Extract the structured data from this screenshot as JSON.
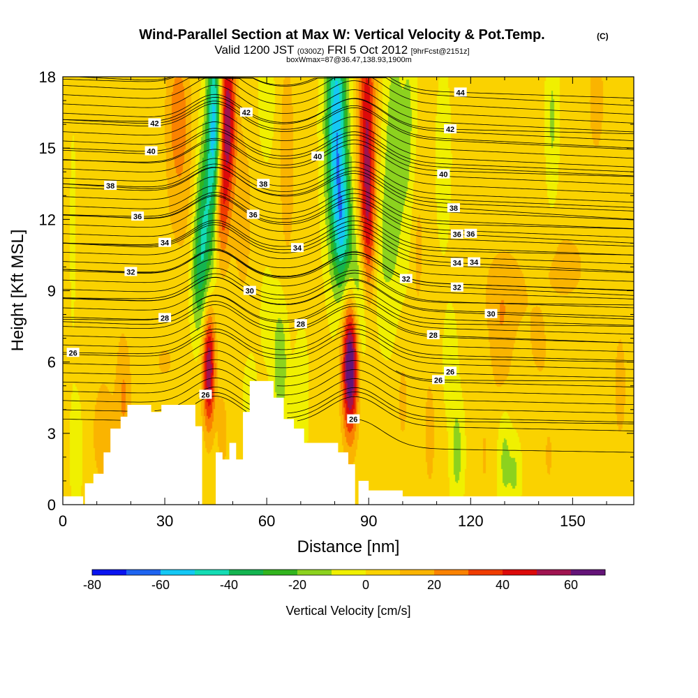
{
  "chart_data": {
    "type": "heatmap",
    "title": "Wind-Parallel Section at Max W: Vertical Velocity & Pot.Temp.",
    "title_mark": "(C)",
    "subtitle": {
      "part1": "Valid 1200 JST",
      "part2": "(0300Z)",
      "part3": "FRI 5 Oct 2012",
      "part4": "[9hrFcst@2151z]"
    },
    "subtitle2": "boxWmax=87@36.47,138.93,1900m",
    "xlabel": "Distance [nm]",
    "ylabel": "Height [Kft MSL]",
    "xlim": [
      0,
      168
    ],
    "ylim": [
      0,
      18
    ],
    "x_ticks": [
      "0",
      "30",
      "60",
      "90",
      "120",
      "150"
    ],
    "x_tick_values": [
      0,
      30,
      60,
      90,
      120,
      150
    ],
    "y_ticks": [
      "0",
      "3",
      "6",
      "9",
      "12",
      "15",
      "18"
    ],
    "y_tick_values": [
      0,
      3,
      6,
      9,
      12,
      15,
      18
    ],
    "colorbar": {
      "label": "Vertical Velocity [cm/s]",
      "levels": [
        -80,
        -70,
        -60,
        -50,
        -40,
        -30,
        -20,
        -10,
        0,
        10,
        20,
        30,
        40,
        50,
        60,
        70
      ],
      "tick_labels": [
        "-80",
        "-60",
        "-40",
        "-20",
        "0",
        "20",
        "40",
        "60"
      ],
      "tick_values": [
        -80,
        -60,
        -40,
        -20,
        0,
        20,
        40,
        60
      ],
      "colors": [
        "#0a14f0",
        "#1e64f0",
        "#14c8f5",
        "#14dcb4",
        "#14b450",
        "#32b41e",
        "#8cd21e",
        "#f0f000",
        "#fad200",
        "#fab400",
        "#fa8200",
        "#f03c00",
        "#dc0a0a",
        "#a01450",
        "#641478"
      ]
    },
    "velocity_features": [
      {
        "x": 43,
        "y": 5.8,
        "sx": 1.3,
        "sy": 1.8,
        "w": 58
      },
      {
        "x": 84.5,
        "y": 5.8,
        "sx": 1.6,
        "sy": 2.0,
        "w": 72
      },
      {
        "x": 34,
        "y": 16.5,
        "sx": 2.5,
        "sy": 2.0,
        "w": 24
      },
      {
        "x": 35,
        "y": 12.5,
        "sx": 3.5,
        "sy": 2.0,
        "w": 10
      },
      {
        "x": 48.5,
        "y": 16.3,
        "sx": 1.6,
        "sy": 2.4,
        "w": 55
      },
      {
        "x": 46.5,
        "y": 12.5,
        "sx": 1.5,
        "sy": 1.8,
        "w": 34
      },
      {
        "x": 44.5,
        "y": 15.8,
        "sx": 1.5,
        "sy": 3.0,
        "w": -58
      },
      {
        "x": 41.5,
        "y": 11.5,
        "sx": 1.8,
        "sy": 2.5,
        "w": -40
      },
      {
        "x": 39.5,
        "y": 9.5,
        "sx": 1.5,
        "sy": 1.8,
        "w": -18
      },
      {
        "x": 53,
        "y": 12.2,
        "sx": 2.3,
        "sy": 3.0,
        "w": 12
      },
      {
        "x": 60,
        "y": 17,
        "sx": 1.6,
        "sy": 1.5,
        "w": -12
      },
      {
        "x": 66,
        "y": 14.5,
        "sx": 2.0,
        "sy": 4.0,
        "w": 12
      },
      {
        "x": 80.5,
        "y": 16.0,
        "sx": 2.2,
        "sy": 3.5,
        "w": -60
      },
      {
        "x": 82.5,
        "y": 11.5,
        "sx": 2.0,
        "sy": 2.0,
        "w": -40
      },
      {
        "x": 86.5,
        "y": 9.5,
        "sx": 1.5,
        "sy": 1.5,
        "w": -20
      },
      {
        "x": 89.5,
        "y": 15.5,
        "sx": 1.8,
        "sy": 3.5,
        "w": 48
      },
      {
        "x": 90,
        "y": 11.5,
        "sx": 1.6,
        "sy": 1.8,
        "w": 22
      },
      {
        "x": 97.5,
        "y": 14.5,
        "sx": 2.0,
        "sy": 4.0,
        "w": -20
      },
      {
        "x": 102,
        "y": 15,
        "sx": 1.6,
        "sy": 4.0,
        "w": -15
      },
      {
        "x": 94,
        "y": 11,
        "sx": 2.0,
        "sy": 2.5,
        "w": -12
      },
      {
        "x": 104,
        "y": 11,
        "sx": 1.8,
        "sy": 3.0,
        "w": 12
      },
      {
        "x": 112,
        "y": 14.5,
        "sx": 1.5,
        "sy": 2.5,
        "w": -9
      },
      {
        "x": 130,
        "y": 9,
        "sx": 5.0,
        "sy": 1.5,
        "w": 12
      },
      {
        "x": 148,
        "y": 10,
        "sx": 6.0,
        "sy": 1.5,
        "w": 10
      },
      {
        "x": 129,
        "y": 6.5,
        "sx": 2.5,
        "sy": 1.8,
        "w": 12
      },
      {
        "x": 140,
        "y": 6.5,
        "sx": 3.0,
        "sy": 1.5,
        "w": 8
      },
      {
        "x": 157,
        "y": 17.0,
        "sx": 2.0,
        "sy": 2.0,
        "w": 12
      },
      {
        "x": 144,
        "y": 16.2,
        "sx": 1.2,
        "sy": 2.5,
        "w": -14
      },
      {
        "x": 130,
        "y": 1.9,
        "sx": 1.3,
        "sy": 1.5,
        "w": -16
      },
      {
        "x": 133,
        "y": 1.3,
        "sx": 1.2,
        "sy": 1.0,
        "w": -14
      },
      {
        "x": 116,
        "y": 2.2,
        "sx": 1.3,
        "sy": 1.5,
        "w": -18
      },
      {
        "x": 114,
        "y": 6.0,
        "sx": 1.3,
        "sy": 1.4,
        "w": -12
      },
      {
        "x": 4,
        "y": 2.3,
        "sx": 1.2,
        "sy": 1.5,
        "w": -12
      },
      {
        "x": 3,
        "y": 11,
        "sx": 0.6,
        "sy": 3.0,
        "w": -8
      },
      {
        "x": 30,
        "y": 6,
        "sx": 4.5,
        "sy": 1.3,
        "w": 8
      },
      {
        "x": 13,
        "y": 8,
        "sx": 6.0,
        "sy": 1.3,
        "w": 6
      },
      {
        "x": 12,
        "y": 3.0,
        "sx": 3.0,
        "sy": 2.0,
        "w": 12
      },
      {
        "x": 18,
        "y": 4.5,
        "sx": 1.5,
        "sy": 1.5,
        "w": 18
      },
      {
        "x": 64,
        "y": 6,
        "sx": 1.6,
        "sy": 2.0,
        "w": -22
      },
      {
        "x": 60,
        "y": 8,
        "sx": 1.2,
        "sy": 1.2,
        "w": -10
      },
      {
        "x": 70,
        "y": 4.5,
        "sx": 1.5,
        "sy": 2.0,
        "w": -10
      },
      {
        "x": 100,
        "y": 4.5,
        "sx": 1.5,
        "sy": 2.0,
        "w": 10
      },
      {
        "x": 108,
        "y": 3,
        "sx": 1.3,
        "sy": 2.0,
        "w": 12
      },
      {
        "x": 124,
        "y": 2,
        "sx": 1.5,
        "sy": 2.0,
        "w": 8
      },
      {
        "x": 143,
        "y": 2,
        "sx": 2.0,
        "sy": 2.0,
        "w": 8
      },
      {
        "x": 164,
        "y": 5,
        "sx": 1.5,
        "sy": 2.0,
        "w": 12
      },
      {
        "x": 47,
        "y": 3.0,
        "sx": 1.0,
        "sy": 1.2,
        "w": 15
      },
      {
        "x": 55,
        "y": 4.5,
        "sx": 1.5,
        "sy": 1.5,
        "w": -8
      },
      {
        "x": 88,
        "y": 7.5,
        "sx": 1.0,
        "sy": 1.5,
        "w": -10
      }
    ],
    "terrain": [
      [
        0,
        0.35
      ],
      [
        6,
        0.35
      ],
      [
        6,
        0
      ],
      [
        6.5,
        0
      ],
      [
        6.5,
        0.9
      ],
      [
        9,
        0.9
      ],
      [
        9,
        1.3
      ],
      [
        12,
        1.3
      ],
      [
        12,
        2.2
      ],
      [
        14,
        2.2
      ],
      [
        14,
        3.2
      ],
      [
        17,
        3.2
      ],
      [
        17,
        3.7
      ],
      [
        19,
        3.7
      ],
      [
        19,
        4.2
      ],
      [
        26,
        4.2
      ],
      [
        26,
        3.9
      ],
      [
        29,
        3.9
      ],
      [
        29,
        4.2
      ],
      [
        39,
        4.2
      ],
      [
        39,
        3.3
      ],
      [
        41,
        3.3
      ],
      [
        41,
        0
      ],
      [
        45,
        0
      ],
      [
        45,
        2.2
      ],
      [
        47,
        2.2
      ],
      [
        47,
        1.9
      ],
      [
        49,
        1.9
      ],
      [
        49,
        2.6
      ],
      [
        51,
        2.6
      ],
      [
        51,
        1.9
      ],
      [
        53,
        1.9
      ],
      [
        53,
        3.9
      ],
      [
        55,
        3.9
      ],
      [
        55,
        5.2
      ],
      [
        62,
        5.2
      ],
      [
        62,
        4.5
      ],
      [
        65,
        4.5
      ],
      [
        65,
        3.6
      ],
      [
        68,
        3.6
      ],
      [
        68,
        3.2
      ],
      [
        71,
        3.2
      ],
      [
        71,
        2.6
      ],
      [
        81,
        2.6
      ],
      [
        81,
        2.2
      ],
      [
        84,
        2.2
      ],
      [
        84,
        1.7
      ],
      [
        86,
        1.7
      ],
      [
        86,
        0
      ],
      [
        87,
        0
      ],
      [
        87,
        1.0
      ],
      [
        90,
        1.0
      ],
      [
        90,
        0.6
      ],
      [
        100,
        0.6
      ],
      [
        100,
        0.35
      ],
      [
        168,
        0.35
      ]
    ],
    "contours": [
      {
        "v": 26,
        "yL": 6.4,
        "yR": 6.0,
        "label": "26",
        "label_x": 3,
        "left_x": 0
      },
      {
        "v": 26,
        "yL": 5.3,
        "yR": 5.2,
        "label": "26",
        "label_x": 110.5,
        "left_x": 98
      },
      {
        "v": 26,
        "yL": 2.6,
        "yR": 2.2,
        "label": "26",
        "label_x": 85.5,
        "left_x": 84
      },
      {
        "v": 26,
        "yL": 3.7,
        "yR": 3.4,
        "label": "26",
        "label_x": 42,
        "left_x": 40
      },
      {
        "v": 28,
        "yL": 7.7,
        "yR": 6.8,
        "label": "28",
        "label_x": 109,
        "left_x": 0
      },
      {
        "v": 28,
        "yL": 7.8,
        "yR": 7.5,
        "label": "28",
        "label_x": 30,
        "left_x": 0
      },
      {
        "v": 30,
        "yL": 8.7,
        "yR": 7.8,
        "label": "30",
        "label_x": 126,
        "left_x": 0
      },
      {
        "v": 30,
        "yL": 8.7,
        "yR": 8.4,
        "label": "30",
        "label_x": 55,
        "left_x": 0
      },
      {
        "v": 32,
        "yL": 9.9,
        "yR": 8.8,
        "label": "32",
        "label_x": 116,
        "left_x": 0
      },
      {
        "v": 32,
        "yL": 9.9,
        "yR": 9.0,
        "label": "32",
        "label_x": 20,
        "left_x": 0
      },
      {
        "v": 34,
        "yL": 11.0,
        "yR": 9.8,
        "label": "34",
        "label_x": 116,
        "left_x": 0
      },
      {
        "v": 34,
        "yL": 11.0,
        "yR": 10.5,
        "label": "34",
        "label_x": 30,
        "left_x": 0
      },
      {
        "v": 36,
        "yL": 12.2,
        "yR": 11.0,
        "label": "36",
        "label_x": 116,
        "left_x": 0
      },
      {
        "v": 36,
        "yL": 12.2,
        "yR": 11.6,
        "label": "36",
        "label_x": 22,
        "left_x": 0
      },
      {
        "v": 38,
        "yL": 13.5,
        "yR": 12.5,
        "label": "38",
        "label_x": 14,
        "left_x": 0
      },
      {
        "v": 38,
        "yL": 13.5,
        "yR": 12.0,
        "label": "38",
        "label_x": 115,
        "left_x": 0
      },
      {
        "v": 40,
        "yL": 15.0,
        "yR": 14.0,
        "label": "40",
        "label_x": 26,
        "left_x": 0
      },
      {
        "v": 40,
        "yL": 14.5,
        "yR": 13.8,
        "label": "40",
        "label_x": 75,
        "left_x": 0
      },
      {
        "v": 42,
        "yL": 16.2,
        "yR": 15.0,
        "label": "42",
        "label_x": 27,
        "left_x": 0
      },
      {
        "v": 42,
        "yL": 16.2,
        "yR": 15.6,
        "label": "42",
        "label_x": 114,
        "left_x": 0
      },
      {
        "v": 44,
        "yL": 17.9,
        "yR": 17.1,
        "label": "44",
        "label_x": 117,
        "left_x": 0
      }
    ],
    "extra_contour_labels": [
      {
        "text": "38",
        "x": 59,
        "y": 13.5
      },
      {
        "text": "36",
        "x": 56,
        "y": 12.2
      },
      {
        "text": "42",
        "x": 54,
        "y": 16.5
      },
      {
        "text": "40",
        "x": 112,
        "y": 13.9
      },
      {
        "text": "34",
        "x": 69,
        "y": 10.8
      },
      {
        "text": "32",
        "x": 101,
        "y": 9.5
      },
      {
        "text": "28",
        "x": 70,
        "y": 7.6
      },
      {
        "text": "36",
        "x": 120,
        "y": 11.4
      },
      {
        "text": "34",
        "x": 121,
        "y": 10.2
      },
      {
        "text": "26",
        "x": 114,
        "y": 5.6
      }
    ]
  }
}
